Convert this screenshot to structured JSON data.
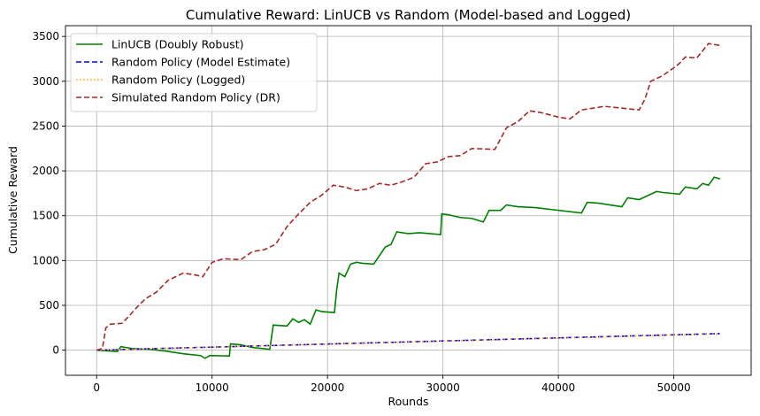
{
  "chart_data": {
    "type": "line",
    "title": "Cumulative Reward: LinUCB vs Random (Model-based and Logged)",
    "xlabel": "Rounds",
    "ylabel": "Cumulative Reward",
    "xlim": [
      -2700,
      56700
    ],
    "ylim": [
      -280,
      3620
    ],
    "xticks": [
      0,
      10000,
      20000,
      30000,
      40000,
      50000
    ],
    "yticks": [
      0,
      500,
      1000,
      1500,
      2000,
      2500,
      3000,
      3500
    ],
    "grid": true,
    "legend_position": "top-left",
    "series": [
      {
        "name": "LinUCB (Doubly Robust)",
        "color": "#008000",
        "dash": "solid",
        "x": [
          0,
          1800,
          2100,
          3000,
          4500,
          6000,
          7500,
          9000,
          9400,
          9800,
          11500,
          11600,
          12500,
          13500,
          15000,
          15300,
          16500,
          17000,
          17500,
          18000,
          18500,
          19000,
          19500,
          20600,
          20800,
          21000,
          21500,
          22000,
          22500,
          23000,
          24000,
          25000,
          25500,
          26000,
          27000,
          28000,
          29800,
          29900,
          30500,
          31500,
          32500,
          33500,
          34000,
          35000,
          35500,
          36500,
          38000,
          40000,
          42000,
          42500,
          43500,
          44500,
          45500,
          46000,
          47000,
          48500,
          49000,
          50500,
          51000,
          52000,
          52500,
          53000,
          53500,
          54000
        ],
        "y": [
          0,
          -15,
          40,
          20,
          10,
          -10,
          -40,
          -60,
          -90,
          -60,
          -65,
          70,
          60,
          30,
          10,
          280,
          270,
          350,
          310,
          340,
          290,
          450,
          430,
          420,
          680,
          860,
          820,
          960,
          980,
          970,
          960,
          1150,
          1180,
          1320,
          1300,
          1310,
          1290,
          1520,
          1510,
          1480,
          1470,
          1430,
          1560,
          1560,
          1620,
          1600,
          1590,
          1560,
          1530,
          1650,
          1640,
          1620,
          1600,
          1700,
          1680,
          1770,
          1760,
          1740,
          1820,
          1800,
          1860,
          1840,
          1930,
          1910
        ]
      },
      {
        "name": "Random Policy (Model Estimate)",
        "color": "#0000ff",
        "dash": "dashed",
        "x": [
          0,
          54000
        ],
        "y": [
          0,
          185
        ]
      },
      {
        "name": "Random Policy (Logged)",
        "color": "#ffa500",
        "dash": "dotted",
        "x": [
          0,
          54000
        ],
        "y": [
          0,
          182
        ]
      },
      {
        "name": "Simulated Random Policy (DR)",
        "color": "#a52a2a",
        "dash": "dashed",
        "x": [
          0,
          500,
          800,
          1200,
          2200,
          2800,
          3500,
          4200,
          5200,
          6200,
          7500,
          8500,
          9200,
          10000,
          11000,
          12500,
          13500,
          14500,
          15500,
          16500,
          17500,
          18500,
          19500,
          20500,
          21500,
          22500,
          23500,
          24500,
          25500,
          26500,
          27500,
          28500,
          29500,
          30500,
          31500,
          32500,
          34500,
          35500,
          36500,
          37500,
          38500,
          40000,
          41000,
          42000,
          43000,
          44000,
          45500,
          47000,
          47500,
          48000,
          49000,
          50000,
          50500,
          51000,
          52000,
          53000,
          54000
        ],
        "y": [
          0,
          20,
          250,
          290,
          300,
          380,
          480,
          570,
          650,
          780,
          860,
          840,
          820,
          980,
          1020,
          1010,
          1100,
          1120,
          1180,
          1380,
          1520,
          1650,
          1730,
          1840,
          1820,
          1780,
          1800,
          1860,
          1840,
          1880,
          1930,
          2080,
          2100,
          2160,
          2170,
          2250,
          2240,
          2480,
          2550,
          2670,
          2650,
          2600,
          2580,
          2680,
          2700,
          2720,
          2700,
          2680,
          2800,
          3000,
          3060,
          3150,
          3200,
          3270,
          3260,
          3420,
          3400
        ]
      }
    ]
  }
}
